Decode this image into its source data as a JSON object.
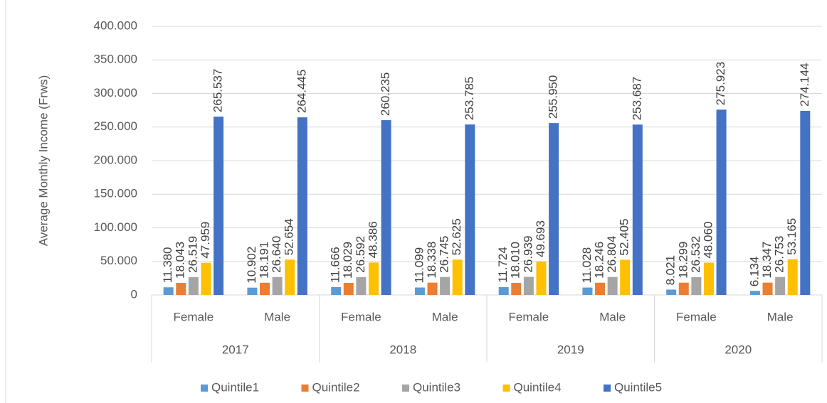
{
  "chart_data": {
    "type": "bar",
    "y_label": "Average Monthly Income (Frws)",
    "categories": [
      "Female",
      "Male",
      "Female",
      "Male",
      "Female",
      "Male",
      "Female",
      "Male"
    ],
    "groups": [
      "2017",
      "2018",
      "2019",
      "2020"
    ],
    "series": [
      {
        "name": "Quintile1",
        "color": "#5b9bd5",
        "values": [
          11380,
          10902,
          11666,
          11099,
          11724,
          11028,
          8021,
          6134
        ],
        "value_labels": [
          "11.380",
          "10.902",
          "11.666",
          "11.099",
          "11.724",
          "11.028",
          "8.021",
          "6.134"
        ]
      },
      {
        "name": "Quintile2",
        "color": "#ed7d31",
        "values": [
          18043,
          18191,
          18029,
          18338,
          18010,
          18246,
          18299,
          18347
        ],
        "value_labels": [
          "18.043",
          "18.191",
          "18.029",
          "18.338",
          "18.010",
          "18.246",
          "18.299",
          "18.347"
        ]
      },
      {
        "name": "Quintile3",
        "color": "#a5a5a5",
        "values": [
          26519,
          26640,
          26592,
          26745,
          26939,
          26804,
          26532,
          26753
        ],
        "value_labels": [
          "26.519",
          "26.640",
          "26.592",
          "26.745",
          "26.939",
          "26.804",
          "26.532",
          "26.753"
        ]
      },
      {
        "name": "Quintile4",
        "color": "#ffc000",
        "values": [
          47959,
          52654,
          48386,
          52625,
          49693,
          52405,
          48060,
          53165
        ],
        "value_labels": [
          "47.959",
          "52.654",
          "48.386",
          "52.625",
          "49.693",
          "52.405",
          "48.060",
          "53.165"
        ]
      },
      {
        "name": "Quintile5",
        "color": "#4472c4",
        "values": [
          265537,
          264445,
          260235,
          253785,
          255950,
          253687,
          275923,
          274144
        ],
        "value_labels": [
          "265.537",
          "264.445",
          "260.235",
          "253.785",
          "255.950",
          "253.687",
          "275.923",
          "274.144"
        ]
      }
    ],
    "ylim": [
      0,
      400000
    ],
    "yticks": [
      0,
      {
        "value": 50000,
        "label": "50.000"
      },
      {
        "value": 100000,
        "label": "100.000"
      },
      {
        "value": 150000,
        "label": "150.000"
      },
      {
        "value": 200000,
        "label": "200.000"
      },
      {
        "value": 250000,
        "label": "250.000"
      },
      {
        "value": 300000,
        "label": "300.000"
      },
      {
        "value": 350000,
        "label": "350.000"
      },
      {
        "value": 400000,
        "label": "400.000"
      }
    ],
    "grid": true,
    "legend": "bottom"
  }
}
